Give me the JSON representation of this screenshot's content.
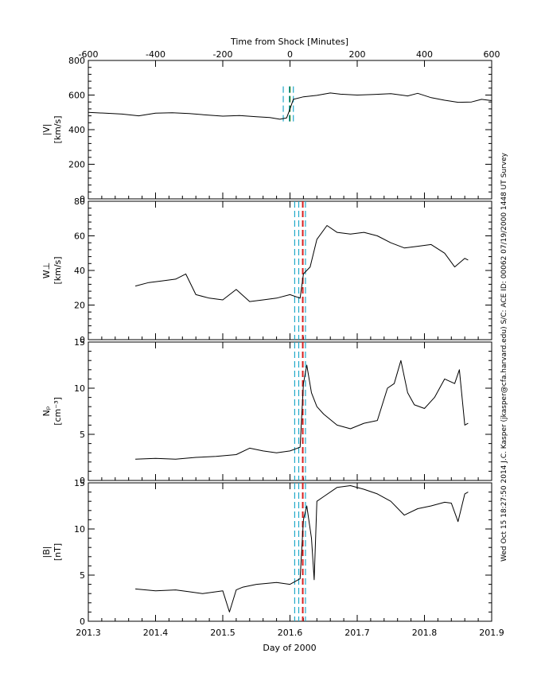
{
  "figure": {
    "top_axis_title": "Time from Shock [Minutes]",
    "bottom_axis_title": "Day of 2000",
    "side_annotation": "Wed Oct 15 18:27:50 2014  J.C. Kasper (jkasper@cfa.harvard.edu)  S/C: ACE ID: 00062 07/19/2000  1448 UT Survey"
  },
  "chart_data": [
    {
      "type": "line",
      "panel": "speed",
      "ylabel_line1": "|V|",
      "ylabel_line2": "[km/s]",
      "ylim": [
        0,
        800
      ],
      "yticks": [
        0,
        200,
        400,
        600,
        800
      ],
      "xlim": [
        -600,
        600
      ],
      "x_axis": "Time from Shock [Minutes]",
      "xticks": [
        -600,
        -400,
        -200,
        0,
        200,
        400,
        600
      ],
      "markers": [
        {
          "x": -20,
          "color": "#1fa8c9",
          "style": "dashed"
        },
        {
          "x": -2,
          "color": "#1fa8c9",
          "style": "dashed"
        },
        {
          "x": 10,
          "color": "#1fa8c9",
          "style": "dashed"
        },
        {
          "x": 0,
          "color": "#0a6e0a",
          "style": "dashed"
        }
      ],
      "x": [
        -600,
        -550,
        -500,
        -450,
        -400,
        -350,
        -300,
        -250,
        -200,
        -150,
        -100,
        -60,
        -30,
        -10,
        0,
        10,
        40,
        80,
        120,
        150,
        200,
        250,
        300,
        350,
        380,
        420,
        460,
        500,
        540,
        570,
        600
      ],
      "y": [
        500,
        495,
        490,
        480,
        495,
        498,
        493,
        485,
        478,
        482,
        475,
        470,
        460,
        468,
        520,
        575,
        590,
        598,
        612,
        605,
        600,
        603,
        608,
        595,
        610,
        585,
        570,
        558,
        560,
        575,
        568
      ]
    },
    {
      "type": "line",
      "panel": "thermal",
      "ylabel_line1": "W⊥",
      "ylabel_line2": "[km/s]",
      "ylim": [
        0,
        80
      ],
      "yticks": [
        0,
        20,
        40,
        60,
        80
      ],
      "xlim": [
        201.3,
        201.9
      ],
      "x_axis": "Day of 2000",
      "markers": [
        {
          "x": 201.607,
          "color": "#1fa8c9",
          "style": "dashed"
        },
        {
          "x": 201.613,
          "color": "#1fa8c9",
          "style": "dashed"
        },
        {
          "x": 201.619,
          "color": "#d81e1e",
          "style": "dashed"
        },
        {
          "x": 201.623,
          "color": "#1fa8c9",
          "style": "dashed"
        }
      ],
      "x": [
        201.37,
        201.39,
        201.41,
        201.43,
        201.445,
        201.46,
        201.48,
        201.5,
        201.52,
        201.54,
        201.56,
        201.58,
        201.6,
        201.615,
        201.62,
        201.63,
        201.64,
        201.655,
        201.67,
        201.69,
        201.71,
        201.73,
        201.75,
        201.77,
        201.79,
        201.81,
        201.83,
        201.845,
        201.86,
        201.865
      ],
      "y": [
        31,
        33,
        34,
        35,
        38,
        26,
        24,
        23,
        29,
        22,
        23,
        24,
        26,
        24,
        38,
        42,
        58,
        66,
        62,
        61,
        62,
        60,
        56,
        53,
        54,
        55,
        50,
        42,
        47,
        46
      ]
    },
    {
      "type": "line",
      "panel": "density",
      "ylabel_line1": "Nₚ",
      "ylabel_line2": "[cm⁻³]",
      "ylim": [
        0,
        15
      ],
      "yticks": [
        0,
        5,
        10,
        15
      ],
      "xlim": [
        201.3,
        201.9
      ],
      "markers": [
        {
          "x": 201.607,
          "color": "#1fa8c9",
          "style": "dashed"
        },
        {
          "x": 201.613,
          "color": "#1fa8c9",
          "style": "dashed"
        },
        {
          "x": 201.619,
          "color": "#d81e1e",
          "style": "dashed"
        },
        {
          "x": 201.623,
          "color": "#1fa8c9",
          "style": "dashed"
        }
      ],
      "x": [
        201.37,
        201.4,
        201.43,
        201.46,
        201.49,
        201.52,
        201.54,
        201.56,
        201.58,
        201.6,
        201.615,
        201.62,
        201.625,
        201.632,
        201.64,
        201.65,
        201.67,
        201.69,
        201.71,
        201.73,
        201.745,
        201.755,
        201.765,
        201.775,
        201.785,
        201.8,
        201.815,
        201.83,
        201.845,
        201.852,
        201.86,
        201.865
      ],
      "y": [
        2.3,
        2.4,
        2.3,
        2.5,
        2.6,
        2.8,
        3.5,
        3.2,
        3.0,
        3.2,
        3.6,
        10.5,
        12.5,
        9.5,
        8.0,
        7.2,
        6.0,
        5.6,
        6.2,
        6.5,
        10.0,
        10.5,
        13.0,
        9.5,
        8.2,
        7.8,
        9.0,
        11.0,
        10.5,
        12.0,
        6.0,
        6.2
      ]
    },
    {
      "type": "line",
      "panel": "magnetic",
      "ylabel_line1": "|B|",
      "ylabel_line2": "[nT]",
      "ylim": [
        0,
        15
      ],
      "yticks": [
        0,
        5,
        10,
        15
      ],
      "xlim": [
        201.3,
        201.9
      ],
      "xticks": [
        201.3,
        201.4,
        201.5,
        201.6,
        201.7,
        201.8,
        201.9
      ],
      "markers": [
        {
          "x": 201.607,
          "color": "#1fa8c9",
          "style": "dashed"
        },
        {
          "x": 201.613,
          "color": "#1fa8c9",
          "style": "dashed"
        },
        {
          "x": 201.619,
          "color": "#d81e1e",
          "style": "dashed"
        },
        {
          "x": 201.623,
          "color": "#1fa8c9",
          "style": "dashed"
        }
      ],
      "x": [
        201.37,
        201.4,
        201.43,
        201.45,
        201.47,
        201.5,
        201.51,
        201.52,
        201.53,
        201.55,
        201.58,
        201.6,
        201.615,
        201.62,
        201.625,
        201.632,
        201.636,
        201.64,
        201.65,
        201.67,
        201.69,
        201.71,
        201.73,
        201.75,
        201.77,
        201.79,
        201.81,
        201.83,
        201.84,
        201.85,
        201.86,
        201.865
      ],
      "y": [
        3.5,
        3.3,
        3.4,
        3.2,
        3.0,
        3.3,
        1.0,
        3.4,
        3.7,
        4.0,
        4.2,
        4.0,
        4.6,
        11.0,
        12.5,
        9.0,
        4.5,
        13.0,
        13.5,
        14.5,
        14.7,
        14.3,
        13.8,
        13.0,
        11.5,
        12.2,
        12.5,
        12.9,
        12.8,
        10.8,
        13.8,
        14.0
      ]
    }
  ]
}
